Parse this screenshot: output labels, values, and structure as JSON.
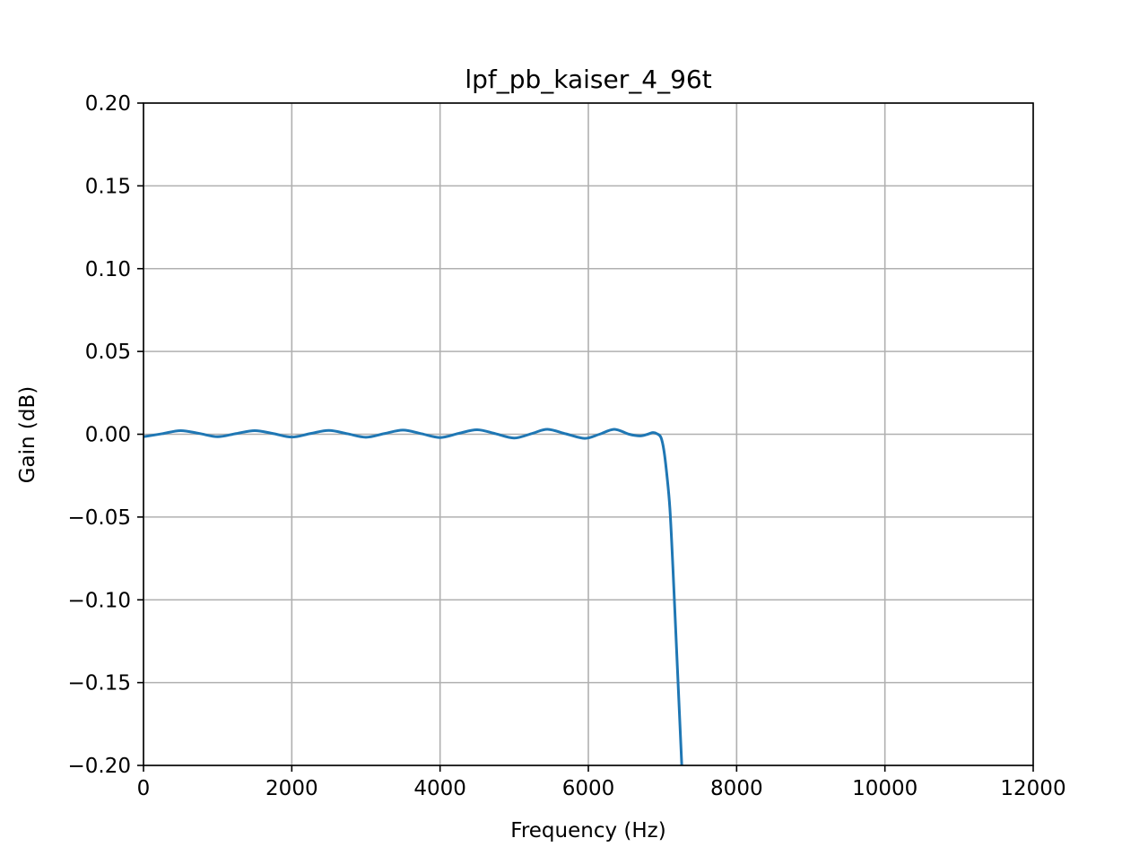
{
  "chart_data": {
    "type": "line",
    "title": "lpf_pb_kaiser_4_96t",
    "xlabel": "Frequency (Hz)",
    "ylabel": "Gain (dB)",
    "xlim": [
      0,
      12000
    ],
    "ylim": [
      -0.2,
      0.2
    ],
    "grid": true,
    "legend": "none",
    "xticks": [
      0,
      2000,
      4000,
      6000,
      8000,
      10000,
      12000
    ],
    "xtick_labels": [
      "0",
      "2000",
      "4000",
      "6000",
      "8000",
      "10000",
      "12000"
    ],
    "yticks": [
      0.2,
      0.15,
      0.1,
      0.05,
      0.0,
      -0.05,
      -0.1,
      -0.15,
      -0.2
    ],
    "ytick_labels": [
      "0.20",
      "0.15",
      "0.10",
      "0.05",
      "0.00",
      "−0.05",
      "−0.10",
      "−0.15",
      "−0.20"
    ],
    "series": [
      {
        "color": "#1f77b4",
        "x": [
          0,
          250,
          500,
          750,
          1000,
          1250,
          1500,
          1750,
          2000,
          2250,
          2500,
          2750,
          3000,
          3250,
          3500,
          3750,
          4000,
          4250,
          4500,
          4750,
          5000,
          5250,
          5450,
          5700,
          5950,
          6150,
          6350,
          6550,
          6700,
          6800,
          6870,
          6930,
          6980,
          7020,
          7060,
          7100,
          7140,
          7180,
          7220,
          7260
        ],
        "y": [
          -0.0015,
          0.0003,
          0.0022,
          0.0005,
          -0.0015,
          0.0004,
          0.0022,
          0.0004,
          -0.0017,
          0.0004,
          0.0023,
          0.0003,
          -0.0018,
          0.0004,
          0.0025,
          0.0003,
          -0.002,
          0.0005,
          0.0027,
          0.0003,
          -0.0023,
          0.0006,
          0.003,
          0.0002,
          -0.0025,
          0.0,
          0.003,
          0.0,
          -0.001,
          0.0,
          0.001,
          0.0002,
          -0.002,
          -0.01,
          -0.025,
          -0.045,
          -0.08,
          -0.12,
          -0.16,
          -0.2
        ]
      }
    ]
  }
}
